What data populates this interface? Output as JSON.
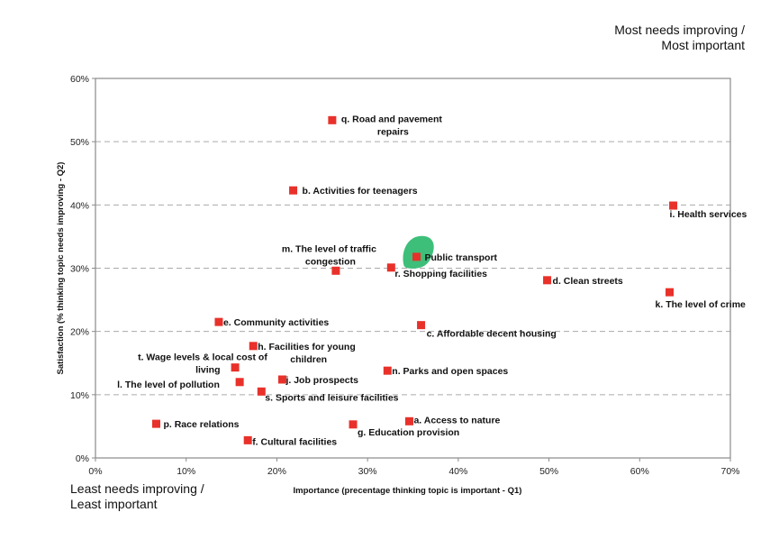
{
  "corner_labels": {
    "top_right_line1": "Most needs improving /",
    "top_right_line2": "Most important",
    "bottom_left_line1": "Least needs improving /",
    "bottom_left_line2": "Least important"
  },
  "colors": {
    "marker": "#e8312a",
    "highlight": "#3dbf7a",
    "grid": "#aaaaaa",
    "frame": "#8a8a8a"
  },
  "chart_data": {
    "type": "scatter",
    "title": "",
    "xlabel": "Importance (precentage thinking topic is important - Q1)",
    "ylabel": "Satisfaction (% thinking topic needs improving - Q2)",
    "xlim": [
      0,
      70
    ],
    "ylim": [
      0,
      60
    ],
    "x_ticks": [
      "0%",
      "10%",
      "20%",
      "30%",
      "40%",
      "50%",
      "60%",
      "70%"
    ],
    "y_ticks": [
      "0%",
      "10%",
      "20%",
      "30%",
      "40%",
      "50%",
      "60%"
    ],
    "grid": "horizontal dashed",
    "legend": "none",
    "points": [
      {
        "id": "q",
        "label": "q. Road and pavement repairs",
        "lines": [
          "q. Road and pavement",
          "repairs"
        ],
        "x": 26.1,
        "y": 53.4
      },
      {
        "id": "b",
        "label": "b. Activities for teenagers",
        "lines": [
          "b. Activities for teenagers"
        ],
        "x": 21.8,
        "y": 42.3
      },
      {
        "id": "i",
        "label": "i. Health services",
        "lines": [
          "i. Health services"
        ],
        "x": 63.7,
        "y": 39.9
      },
      {
        "id": "o",
        "label": "Public transport",
        "lines": [
          "Public transport"
        ],
        "x": 35.4,
        "y": 31.8,
        "highlighted": true
      },
      {
        "id": "m",
        "label": "m. The level of traffic congestion",
        "lines": [
          "m. The level of traffic",
          "congestion"
        ],
        "x": 26.5,
        "y": 29.6
      },
      {
        "id": "r",
        "label": "r. Shopping facilities",
        "lines": [
          "r. Shopping facilities"
        ],
        "x": 32.6,
        "y": 30.1
      },
      {
        "id": "d",
        "label": "d. Clean streets",
        "lines": [
          "d. Clean streets"
        ],
        "x": 49.8,
        "y": 28.1
      },
      {
        "id": "k",
        "label": "k. The level of crime",
        "lines": [
          "k. The level of crime"
        ],
        "x": 63.3,
        "y": 26.2
      },
      {
        "id": "e",
        "label": "e. Community activities",
        "lines": [
          "e. Community activities"
        ],
        "x": 13.6,
        "y": 21.5
      },
      {
        "id": "c",
        "label": "c. Affordable decent housing",
        "lines": [
          "c. Affordable decent housing"
        ],
        "x": 35.9,
        "y": 21.0
      },
      {
        "id": "h",
        "label": "h. Facilities for young children",
        "lines": [
          "h. Facilities for young",
          "children"
        ],
        "x": 17.4,
        "y": 17.7
      },
      {
        "id": "t",
        "label": "t. Wage levels & local cost of living",
        "lines": [
          "t. Wage levels & local cost of",
          "living"
        ],
        "x": 15.4,
        "y": 14.3
      },
      {
        "id": "n",
        "label": "n. Parks and open spaces",
        "lines": [
          "n. Parks and open spaces"
        ],
        "x": 32.2,
        "y": 13.8
      },
      {
        "id": "j",
        "label": "j. Job prospects",
        "lines": [
          "j. Job prospects"
        ],
        "x": 20.6,
        "y": 12.4
      },
      {
        "id": "l",
        "label": "l. The level of pollution",
        "lines": [
          "l. The level of pollution"
        ],
        "x": 15.9,
        "y": 12.0
      },
      {
        "id": "s",
        "label": "s. Sports and leisure facilities",
        "lines": [
          "s. Sports and leisure facilities"
        ],
        "x": 18.3,
        "y": 10.5
      },
      {
        "id": "p",
        "label": "p. Race relations",
        "lines": [
          "p. Race relations"
        ],
        "x": 6.7,
        "y": 5.4
      },
      {
        "id": "a",
        "label": "a. Access to nature",
        "lines": [
          "a. Access to nature"
        ],
        "x": 34.6,
        "y": 5.8
      },
      {
        "id": "g",
        "label": "g. Education provision",
        "lines": [
          "g. Education provision"
        ],
        "x": 28.4,
        "y": 5.3
      },
      {
        "id": "f",
        "label": "f. Cultural facilities",
        "lines": [
          "f. Cultural facilities"
        ],
        "x": 16.8,
        "y": 2.8
      }
    ]
  }
}
